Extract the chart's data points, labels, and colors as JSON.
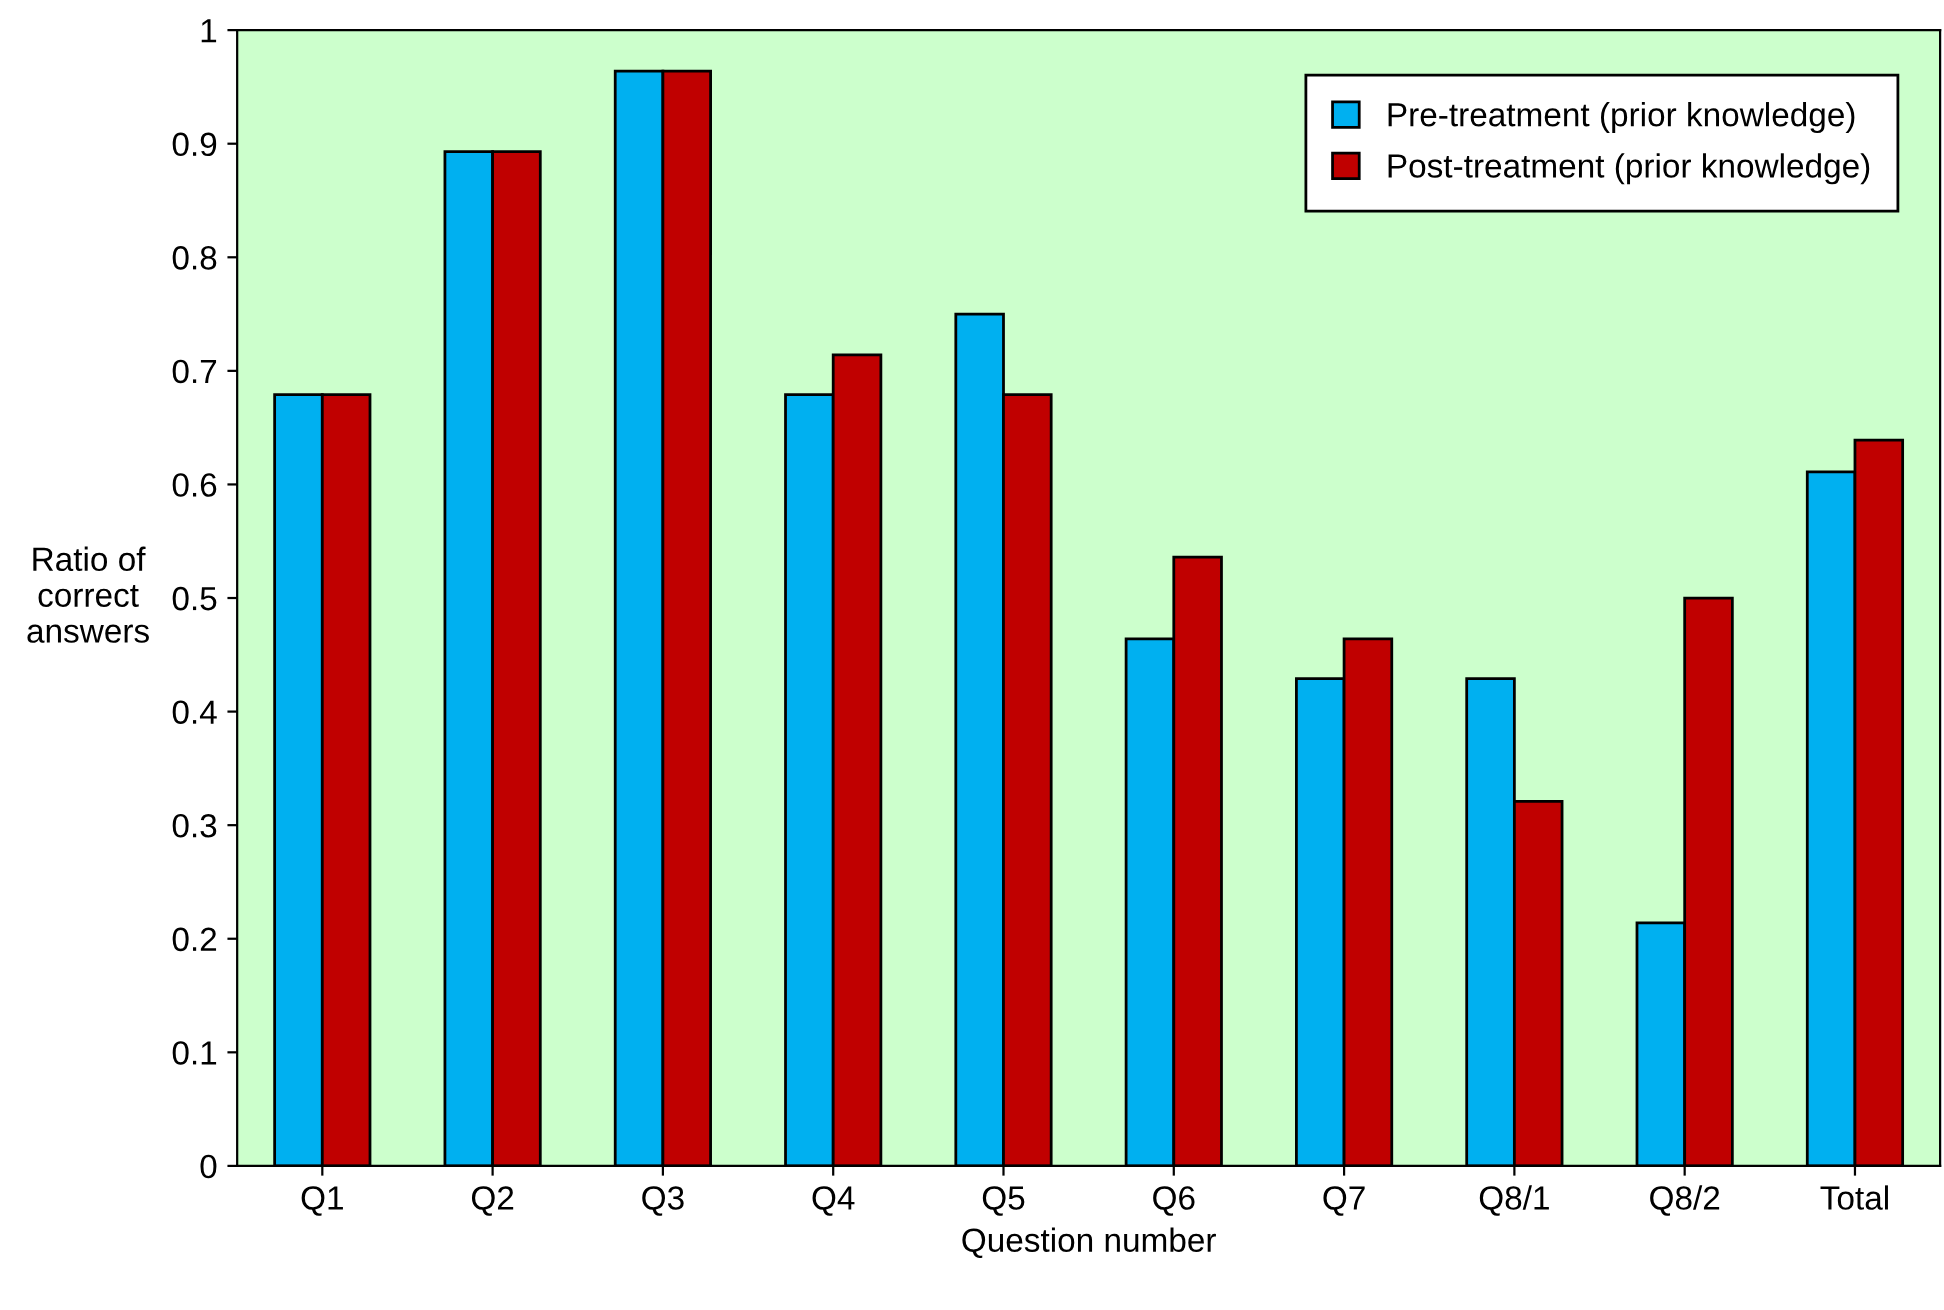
{
  "chart_data": {
    "type": "bar",
    "xlabel": "Question number",
    "ylabel": "Ratio of\ncorrect\nanswers",
    "categories": [
      "Q1",
      "Q2",
      "Q3",
      "Q4",
      "Q5",
      "Q6",
      "Q7",
      "Q8/1",
      "Q8/2",
      "Total"
    ],
    "series": [
      {
        "name": "Pre-treatment (prior knowledge)",
        "color": "#00b0f0",
        "values": [
          0.679,
          0.893,
          0.964,
          0.679,
          0.75,
          0.464,
          0.429,
          0.429,
          0.214,
          0.611
        ]
      },
      {
        "name": "Post-treatment (prior knowledge)",
        "color": "#c00000",
        "values": [
          0.679,
          0.893,
          0.964,
          0.714,
          0.679,
          0.536,
          0.464,
          0.321,
          0.5,
          0.639
        ]
      }
    ],
    "ylim": [
      0,
      1
    ],
    "yticks": [
      0,
      0.1,
      0.2,
      0.3,
      0.4,
      0.5,
      0.6,
      0.7,
      0.8,
      0.9,
      1
    ],
    "grid": false,
    "legend": "top right"
  }
}
